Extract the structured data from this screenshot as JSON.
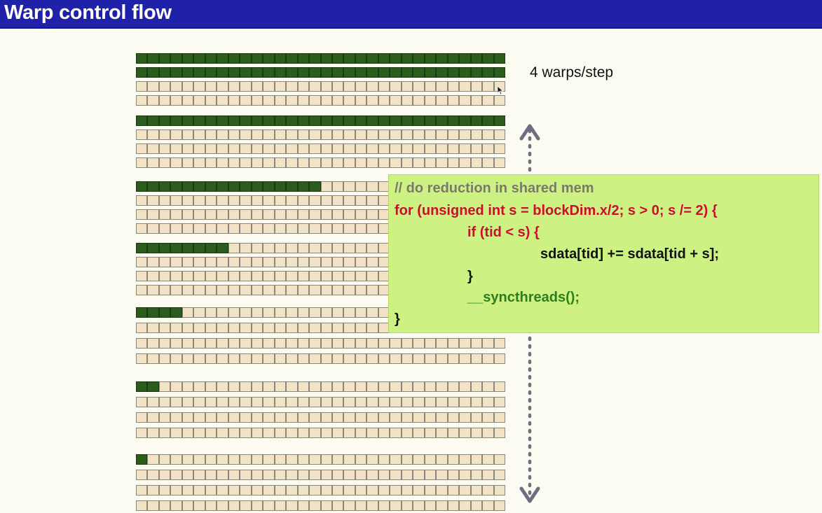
{
  "title": "Warp control flow",
  "annotation": "4 warps/step",
  "grid": {
    "cells_per_row": 32,
    "groups": [
      {
        "active": [
          32,
          32,
          0,
          0
        ]
      },
      {
        "active": [
          32,
          0,
          0,
          0
        ]
      },
      {
        "active": [
          16,
          0,
          0,
          0
        ]
      },
      {
        "active": [
          8,
          0,
          0,
          0
        ]
      },
      {
        "active": [
          4,
          0,
          0,
          0
        ]
      },
      {
        "active": [
          2,
          0,
          0,
          0
        ]
      },
      {
        "active": [
          1,
          0,
          0,
          0
        ]
      }
    ],
    "colors": {
      "active": "#2c5b1e",
      "inactive": "#f2e2c6"
    }
  },
  "code": {
    "comment": "// do reduction in shared mem",
    "for_line": "for (unsigned int s = blockDim.x/2; s > 0; s /= 2) {",
    "if_line": "if (tid < s) {",
    "sum_line": "sdata[tid] += sdata[tid + s];",
    "close_if": "}",
    "sync_line": "__syncthreads();",
    "close_for": "}"
  },
  "icons": {
    "arrow": "double-headed-dotted-arrow-icon",
    "cursor": "mouse-pointer-icon"
  }
}
